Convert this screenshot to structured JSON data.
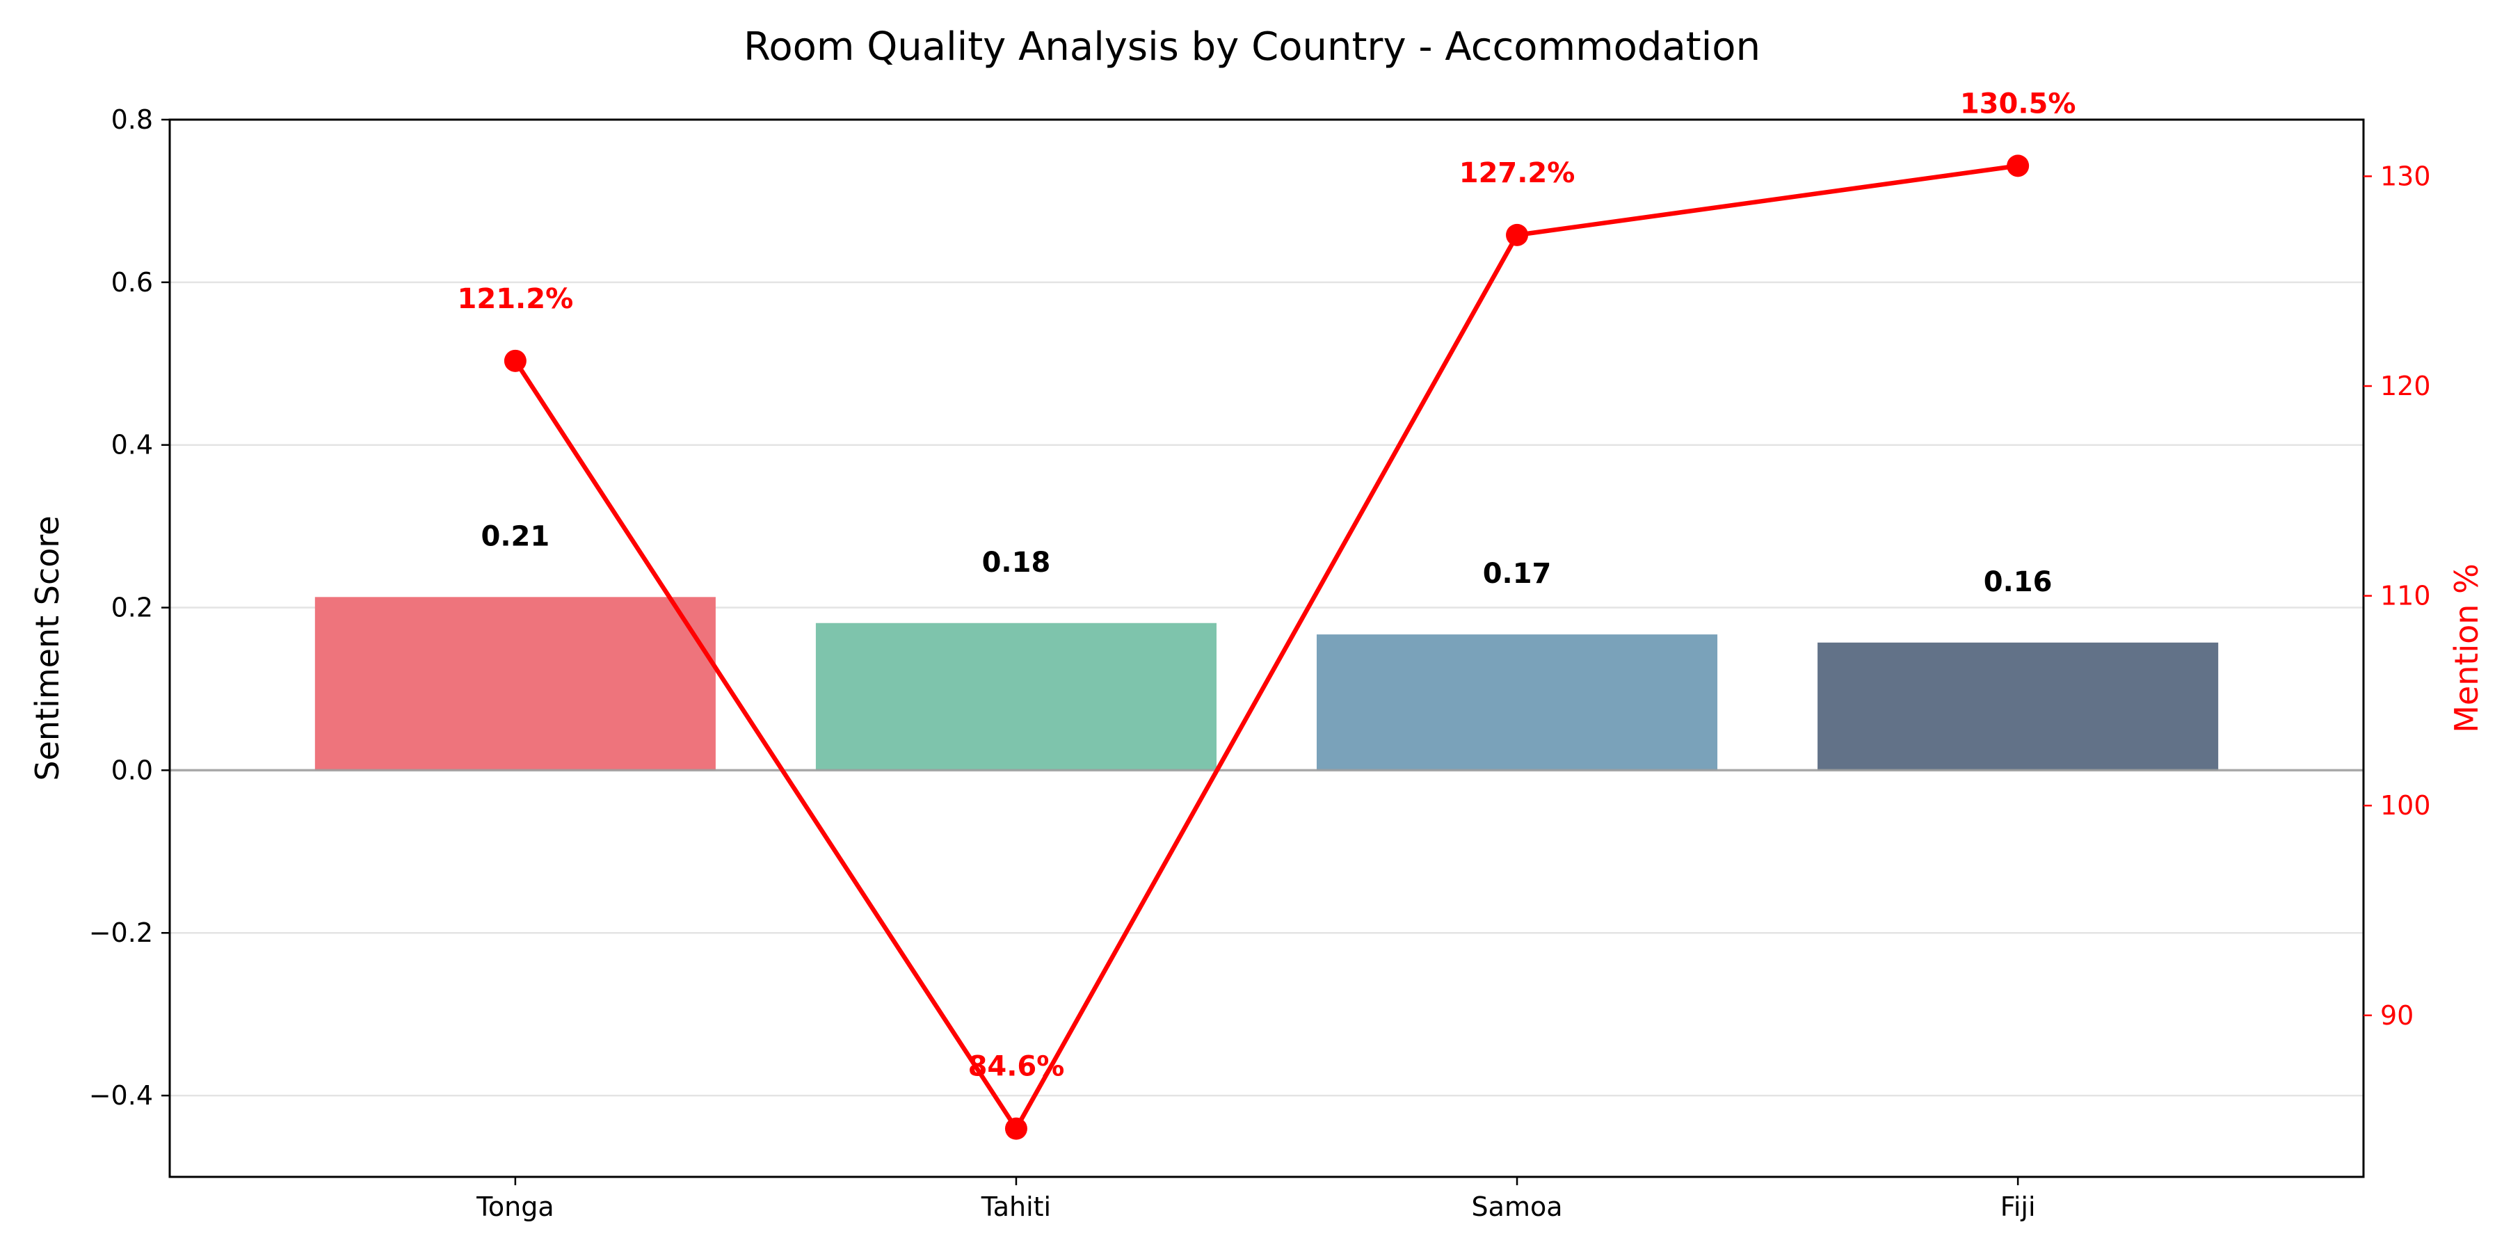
{
  "chart_data": {
    "type": "bar",
    "title": "Room Quality Analysis by Country - Accommodation",
    "categories": [
      "Tonga",
      "Tahiti",
      "Samoa",
      "Fiji"
    ],
    "series": [
      {
        "name": "Sentiment Score",
        "axis": "left",
        "type": "bar",
        "values": [
          0.213,
          0.181,
          0.167,
          0.157
        ],
        "labels": [
          "0.21",
          "0.18",
          "0.17",
          "0.16"
        ],
        "colors": [
          "#ee747c",
          "#7ec4ac",
          "#7aa2ba",
          "#627288"
        ]
      },
      {
        "name": "Mention %",
        "axis": "right",
        "type": "line",
        "values": [
          121.2,
          84.6,
          127.2,
          130.5
        ],
        "labels": [
          "121.2%",
          "84.6%",
          "127.2%",
          "130.5%"
        ],
        "color": "#ff0000"
      }
    ],
    "ylabel": "Sentiment Score",
    "ylabel_right": "Mention %",
    "ylim": [
      -0.5,
      0.8
    ],
    "ylim_right": [
      82.3,
      132.7
    ],
    "yticks": [
      -0.4,
      -0.2,
      0.0,
      0.2,
      0.4,
      0.6,
      0.8
    ],
    "ytick_labels": [
      "−0.4",
      "−0.2",
      "0.0",
      "0.2",
      "0.4",
      "0.6",
      "0.8"
    ],
    "yticks_right": [
      90,
      100,
      110,
      120,
      130
    ],
    "ytick_labels_right": [
      "90",
      "100",
      "110",
      "120",
      "130"
    ],
    "grid": "horizontal",
    "zero_line": true,
    "right_axis_color": "#ff0000"
  }
}
